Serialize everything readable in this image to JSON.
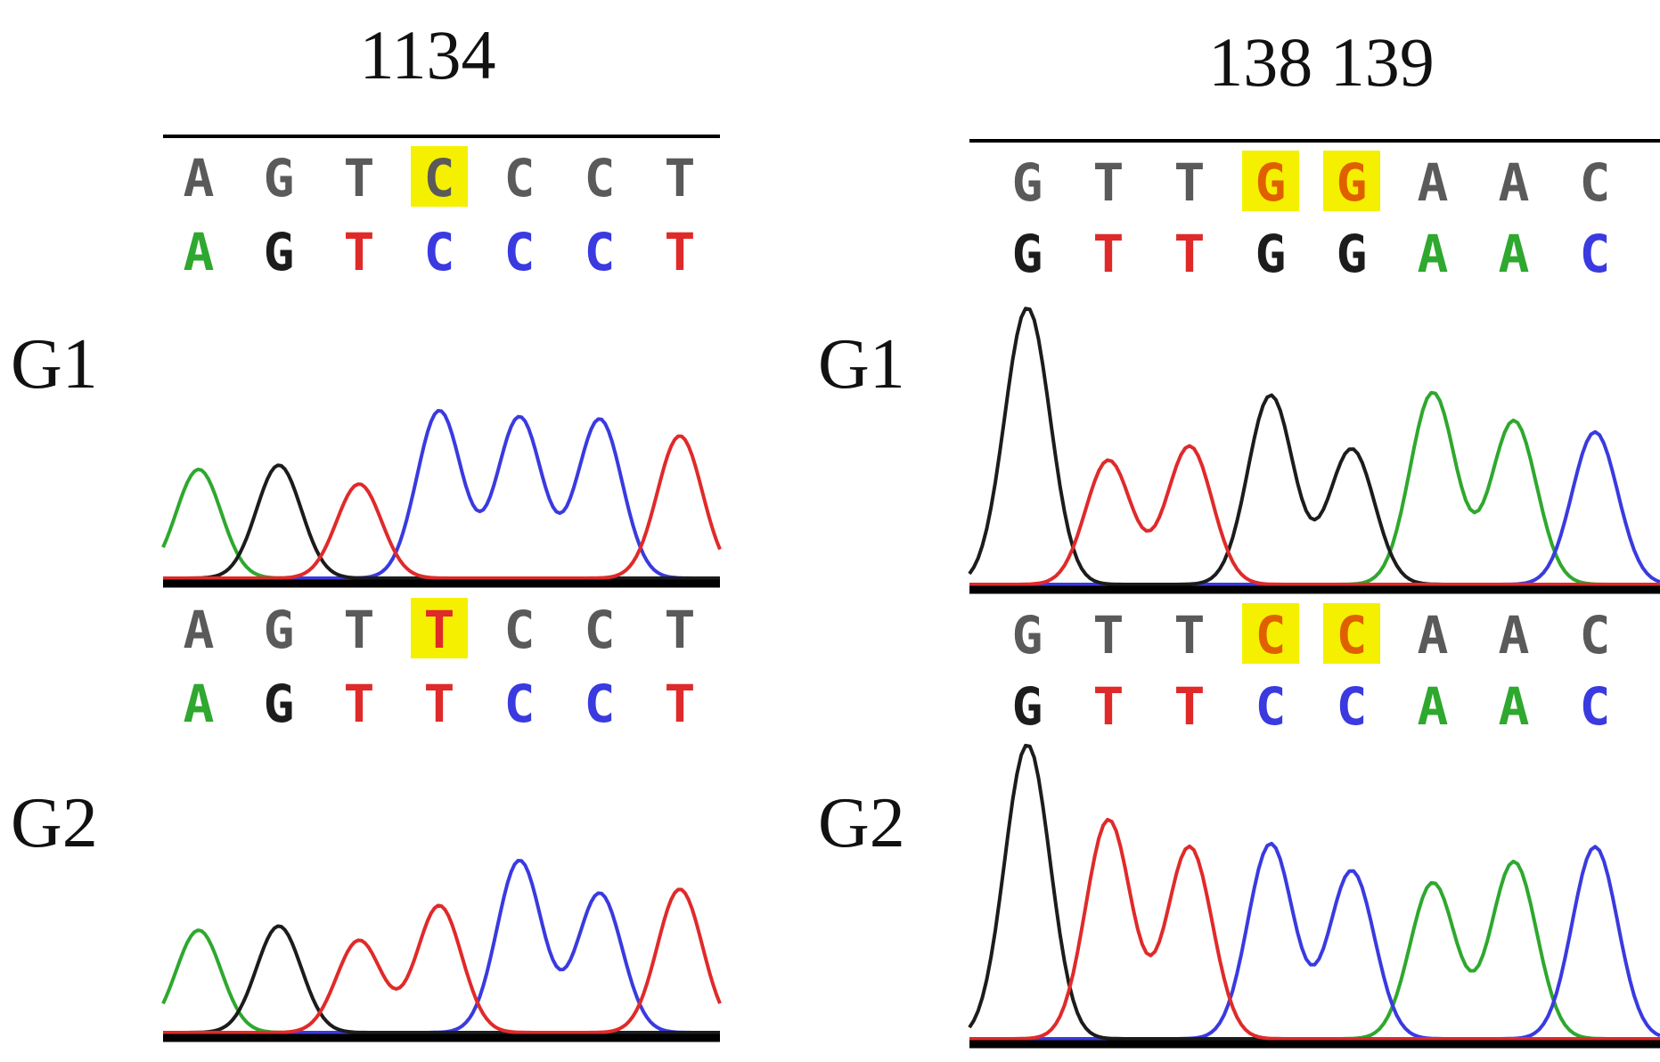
{
  "panels": [
    {
      "position_label": "1134",
      "rows": [
        {
          "group": "G1",
          "called": [
            "A",
            "G",
            "T",
            "C",
            "C",
            "C",
            "T"
          ],
          "reference": [
            "A",
            "G",
            "T",
            "C",
            "C",
            "C",
            "T"
          ],
          "highlight": [
            3
          ],
          "peaks": [
            {
              "base": "A",
              "slot": 0,
              "height": 0.52
            },
            {
              "base": "G",
              "slot": 1,
              "height": 0.54
            },
            {
              "base": "T",
              "slot": 2,
              "height": 0.45
            },
            {
              "base": "C",
              "slot": 3,
              "height": 0.8
            },
            {
              "base": "C",
              "slot": 4,
              "height": 0.77
            },
            {
              "base": "C",
              "slot": 5,
              "height": 0.76
            },
            {
              "base": "T",
              "slot": 6,
              "height": 0.68
            }
          ]
        },
        {
          "group": "G2",
          "called": [
            "A",
            "G",
            "T",
            "T",
            "C",
            "C",
            "T"
          ],
          "reference": [
            "A",
            "G",
            "T",
            "T",
            "C",
            "C",
            "T"
          ],
          "highlight": [
            3
          ],
          "peaks": [
            {
              "base": "A",
              "slot": 0,
              "height": 0.5
            },
            {
              "base": "G",
              "slot": 1,
              "height": 0.52
            },
            {
              "base": "T",
              "slot": 2,
              "height": 0.45
            },
            {
              "base": "T",
              "slot": 3,
              "height": 0.62
            },
            {
              "base": "C",
              "slot": 4,
              "height": 0.84
            },
            {
              "base": "C",
              "slot": 5,
              "height": 0.68
            },
            {
              "base": "T",
              "slot": 6,
              "height": 0.7
            }
          ]
        }
      ]
    },
    {
      "position_label": "138 139",
      "rows": [
        {
          "group": "G1",
          "called": [
            "G",
            "T",
            "T",
            "G",
            "G",
            "A",
            "A",
            "C"
          ],
          "reference": [
            "G",
            "T",
            "T",
            "G",
            "G",
            "A",
            "A",
            "C"
          ],
          "highlight": [
            3,
            4
          ],
          "peaks": [
            {
              "base": "G",
              "slot": 0,
              "height": 0.98
            },
            {
              "base": "T",
              "slot": 1,
              "height": 0.44
            },
            {
              "base": "T",
              "slot": 2,
              "height": 0.49
            },
            {
              "base": "G",
              "slot": 3,
              "height": 0.67
            },
            {
              "base": "G",
              "slot": 4,
              "height": 0.48
            },
            {
              "base": "A",
              "slot": 5,
              "height": 0.68
            },
            {
              "base": "A",
              "slot": 6,
              "height": 0.58
            },
            {
              "base": "C",
              "slot": 7,
              "height": 0.54
            }
          ]
        },
        {
          "group": "G2",
          "called": [
            "G",
            "T",
            "T",
            "C",
            "C",
            "A",
            "A",
            "C"
          ],
          "reference": [
            "G",
            "T",
            "T",
            "C",
            "C",
            "A",
            "A",
            "C"
          ],
          "highlight": [
            3,
            4
          ],
          "peaks": [
            {
              "base": "G",
              "slot": 0,
              "height": 0.98
            },
            {
              "base": "T",
              "slot": 1,
              "height": 0.73
            },
            {
              "base": "T",
              "slot": 2,
              "height": 0.64
            },
            {
              "base": "C",
              "slot": 3,
              "height": 0.65
            },
            {
              "base": "C",
              "slot": 4,
              "height": 0.56
            },
            {
              "base": "A",
              "slot": 5,
              "height": 0.52
            },
            {
              "base": "A",
              "slot": 6,
              "height": 0.59
            },
            {
              "base": "C",
              "slot": 7,
              "height": 0.64
            }
          ]
        }
      ]
    }
  ],
  "colors": {
    "A": "#2ea82e",
    "C": "#3a3ae0",
    "G": "#1c1c1c",
    "T": "#e02a2a",
    "called_text": "#5a5a5a",
    "highlight": "#f5f000",
    "highlight_text": "#e06000",
    "baseline": "#000000"
  }
}
